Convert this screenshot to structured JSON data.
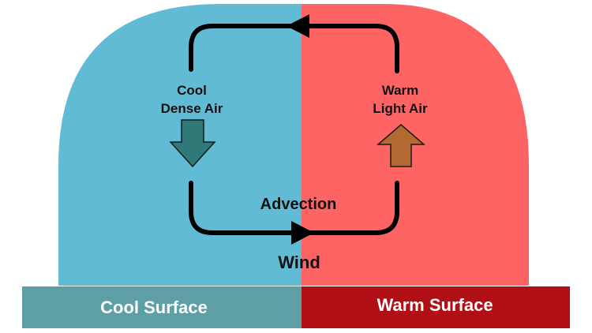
{
  "colors": {
    "cool_air": "#62BBD4",
    "warm_air": "#FF6464",
    "cool_surface": "#5E9FA6",
    "warm_surface": "#B01015",
    "down_arrow": "#2F7A78",
    "up_arrow": "#B26A30",
    "loop": "#000000"
  },
  "cool_side": {
    "label_line1": "Cool",
    "label_line2": "Dense Air",
    "arrow_icon": "down-arrow-icon"
  },
  "warm_side": {
    "label_line1": "Warm",
    "label_line2": "Light Air",
    "arrow_icon": "up-arrow-icon"
  },
  "center": {
    "advection_label": "Advection",
    "wind_label": "Wind"
  },
  "surfaces": {
    "cool": "Cool Surface",
    "warm": "Warm Surface"
  }
}
